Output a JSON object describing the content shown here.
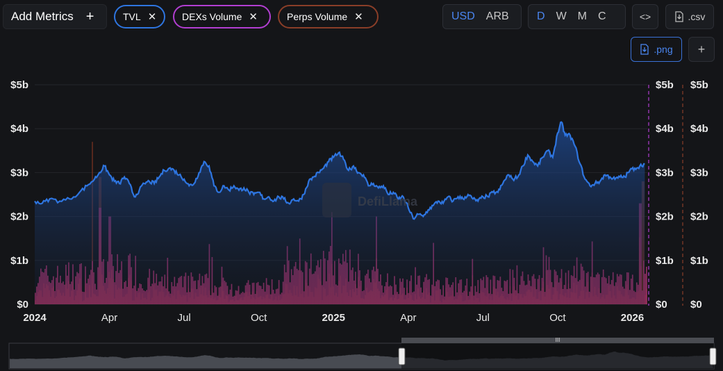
{
  "toolbar": {
    "add_metrics_label": "Add Metrics",
    "add_icon": "plus-icon",
    "chips": [
      {
        "label": "TVL",
        "color": "#2e75e0"
      },
      {
        "label": "DEXs Volume",
        "color": "#b23ed1"
      },
      {
        "label": "Perps Volume",
        "color": "#8a3e28"
      }
    ],
    "remove_icon": "close-icon",
    "currency": {
      "options": [
        "USD",
        "ARB"
      ],
      "selected": "USD"
    },
    "period": {
      "options": [
        "D",
        "W",
        "M",
        "C"
      ],
      "selected": "D"
    },
    "embed_icon": "code-icon",
    "csv_label": ".csv",
    "png_label": ".png",
    "download_icon": "download-icon",
    "add_icon_small": "plus-icon"
  },
  "watermark": "DefiLlama",
  "chart_data": {
    "type": "line",
    "title": "",
    "xlabel": "",
    "ylabel": "",
    "x_range": [
      "2024-01-01",
      "2026-01-20"
    ],
    "ylim": [
      0,
      5000000000
    ],
    "y_ticks": [
      "$0",
      "$1b",
      "$2b",
      "$3b",
      "$4b",
      "$5b"
    ],
    "x_ticks": [
      {
        "label": "2024",
        "bold": true,
        "x": 0
      },
      {
        "label": "Apr",
        "bold": false,
        "x": 3
      },
      {
        "label": "Jul",
        "bold": false,
        "x": 6
      },
      {
        "label": "Oct",
        "bold": false,
        "x": 9
      },
      {
        "label": "2025",
        "bold": true,
        "x": 12
      },
      {
        "label": "Apr",
        "bold": false,
        "x": 15
      },
      {
        "label": "Jul",
        "bold": false,
        "x": 18
      },
      {
        "label": "Oct",
        "bold": false,
        "x": 21
      },
      {
        "label": "2026",
        "bold": true,
        "x": 24
      }
    ],
    "x_max_months": 24.6,
    "series": [
      {
        "name": "TVL",
        "kind": "area",
        "color": "#2e75e0",
        "unit": "billion USD",
        "points": [
          [
            0,
            2.35
          ],
          [
            0.3,
            2.3
          ],
          [
            0.6,
            2.4
          ],
          [
            1,
            2.35
          ],
          [
            1.4,
            2.4
          ],
          [
            1.8,
            2.55
          ],
          [
            2.1,
            2.7
          ],
          [
            2.4,
            2.85
          ],
          [
            2.6,
            3.0
          ],
          [
            2.8,
            3.15
          ],
          [
            3.0,
            2.95
          ],
          [
            3.2,
            2.8
          ],
          [
            3.4,
            2.75
          ],
          [
            3.6,
            2.9
          ],
          [
            3.8,
            2.75
          ],
          [
            4.0,
            2.45
          ],
          [
            4.2,
            2.6
          ],
          [
            4.4,
            2.75
          ],
          [
            4.6,
            2.8
          ],
          [
            4.8,
            2.75
          ],
          [
            5.0,
            2.9
          ],
          [
            5.2,
            3.05
          ],
          [
            5.4,
            3.1
          ],
          [
            5.6,
            3.05
          ],
          [
            5.8,
            2.95
          ],
          [
            6.0,
            2.85
          ],
          [
            6.2,
            2.7
          ],
          [
            6.4,
            2.75
          ],
          [
            6.6,
            3.0
          ],
          [
            6.8,
            3.25
          ],
          [
            7.0,
            3.15
          ],
          [
            7.2,
            2.7
          ],
          [
            7.4,
            2.55
          ],
          [
            7.6,
            2.7
          ],
          [
            7.8,
            2.6
          ],
          [
            8.0,
            2.7
          ],
          [
            8.2,
            2.6
          ],
          [
            8.4,
            2.65
          ],
          [
            8.6,
            2.55
          ],
          [
            8.8,
            2.5
          ],
          [
            9.0,
            2.55
          ],
          [
            9.2,
            2.4
          ],
          [
            9.4,
            2.45
          ],
          [
            9.6,
            2.35
          ],
          [
            9.8,
            2.45
          ],
          [
            10.0,
            2.4
          ],
          [
            10.2,
            2.3
          ],
          [
            10.4,
            2.4
          ],
          [
            10.6,
            2.35
          ],
          [
            10.8,
            2.5
          ],
          [
            11.0,
            2.8
          ],
          [
            11.2,
            2.9
          ],
          [
            11.4,
            3.0
          ],
          [
            11.6,
            3.1
          ],
          [
            11.8,
            3.25
          ],
          [
            12.0,
            3.35
          ],
          [
            12.2,
            3.45
          ],
          [
            12.4,
            3.3
          ],
          [
            12.6,
            3.05
          ],
          [
            12.8,
            3.15
          ],
          [
            13.0,
            3.0
          ],
          [
            13.2,
            2.95
          ],
          [
            13.4,
            2.7
          ],
          [
            13.6,
            2.75
          ],
          [
            13.8,
            2.65
          ],
          [
            14.0,
            2.7
          ],
          [
            14.2,
            2.5
          ],
          [
            14.4,
            2.55
          ],
          [
            14.6,
            2.4
          ],
          [
            14.8,
            2.45
          ],
          [
            15.0,
            2.2
          ],
          [
            15.2,
            1.95
          ],
          [
            15.4,
            2.05
          ],
          [
            15.6,
            2.0
          ],
          [
            15.8,
            2.15
          ],
          [
            16.0,
            2.25
          ],
          [
            16.2,
            2.35
          ],
          [
            16.4,
            2.3
          ],
          [
            16.6,
            2.45
          ],
          [
            16.8,
            2.35
          ],
          [
            17.0,
            2.45
          ],
          [
            17.2,
            2.4
          ],
          [
            17.4,
            2.5
          ],
          [
            17.6,
            2.4
          ],
          [
            17.8,
            2.35
          ],
          [
            18.0,
            2.45
          ],
          [
            18.2,
            2.45
          ],
          [
            18.4,
            2.55
          ],
          [
            18.6,
            2.55
          ],
          [
            18.8,
            2.75
          ],
          [
            19.0,
            2.95
          ],
          [
            19.2,
            2.85
          ],
          [
            19.4,
            2.9
          ],
          [
            19.6,
            3.15
          ],
          [
            19.8,
            3.4
          ],
          [
            20.0,
            3.25
          ],
          [
            20.2,
            3.15
          ],
          [
            20.4,
            3.35
          ],
          [
            20.6,
            3.5
          ],
          [
            20.8,
            3.35
          ],
          [
            21.0,
            3.9
          ],
          [
            21.15,
            4.15
          ],
          [
            21.3,
            3.85
          ],
          [
            21.5,
            3.85
          ],
          [
            21.7,
            3.6
          ],
          [
            21.9,
            3.2
          ],
          [
            22.1,
            2.85
          ],
          [
            22.3,
            2.7
          ],
          [
            22.5,
            2.75
          ],
          [
            22.7,
            2.8
          ],
          [
            22.9,
            2.95
          ],
          [
            23.1,
            2.9
          ],
          [
            23.3,
            2.85
          ],
          [
            23.5,
            2.9
          ],
          [
            23.7,
            2.9
          ],
          [
            23.9,
            3.05
          ],
          [
            24.1,
            3.1
          ],
          [
            24.3,
            3.15
          ],
          [
            24.5,
            3.2
          ]
        ]
      },
      {
        "name": "DEXs Volume",
        "kind": "bar",
        "color": "#a8326e",
        "unit": "billion USD",
        "monthly_typical": [
          0.75,
          0.8,
          0.85,
          0.95,
          0.65,
          0.55,
          0.6,
          0.5,
          0.45,
          0.5,
          0.8,
          1.1,
          1.0,
          0.7,
          0.6,
          0.55,
          0.5,
          0.5,
          0.55,
          0.65,
          0.7,
          0.75,
          0.7,
          0.6,
          0.8
        ],
        "notable_spikes": [
          [
            2.6,
            2.2
          ],
          [
            3.0,
            2.0
          ],
          [
            11.9,
            2.1
          ],
          [
            13.7,
            2.0
          ],
          [
            16.0,
            1.4
          ],
          [
            20.4,
            1.3
          ],
          [
            24.3,
            2.3
          ],
          [
            24.6,
            2.2
          ]
        ]
      },
      {
        "name": "Perps Volume",
        "kind": "bar",
        "color": "#7a3322",
        "unit": "billion USD",
        "notable_spikes": [
          [
            2.3,
            3.7
          ],
          [
            2.6,
            2.9
          ],
          [
            24.4,
            2.8
          ]
        ]
      }
    ]
  }
}
